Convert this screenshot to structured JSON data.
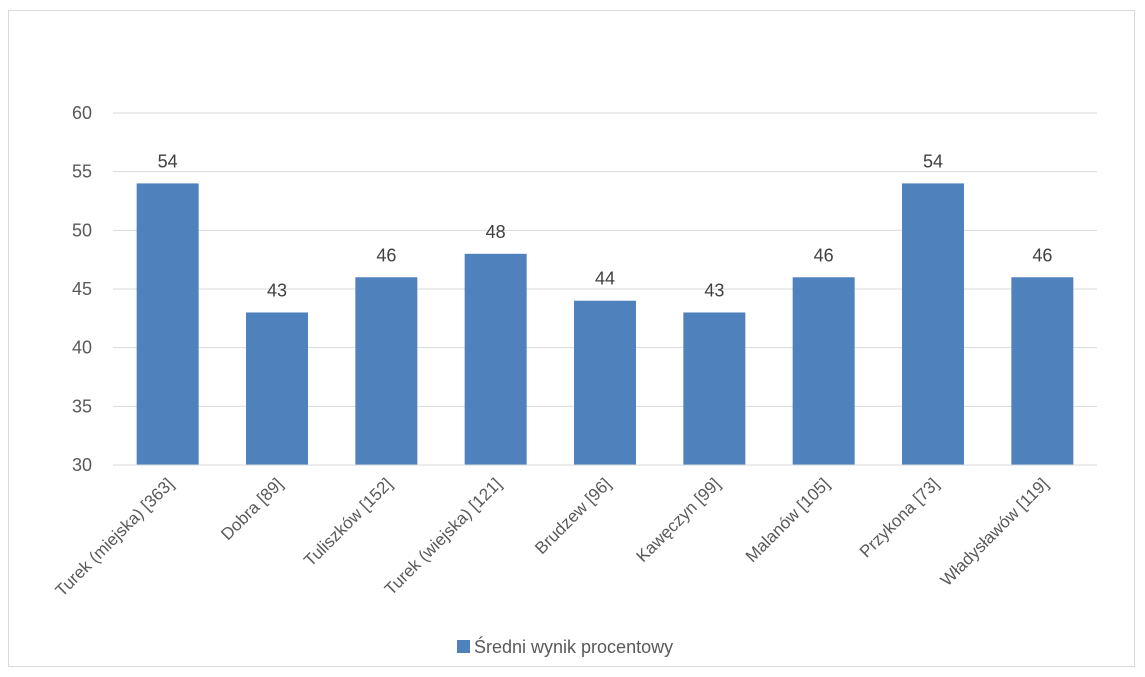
{
  "chart_data": {
    "type": "bar",
    "title": "",
    "xlabel": "",
    "ylabel": "",
    "categories": [
      "Turek (miejska) [363]",
      "Dobra [89]",
      "Tuliszków [152]",
      "Turek (wiejska) [121]",
      "Brudzew [96]",
      "Kawęczyn [99]",
      "Malanów [105]",
      "Przykona [73]",
      "Władysławów [119]"
    ],
    "series": [
      {
        "name": "Średni wynik procentowy",
        "values": [
          54,
          43,
          46,
          48,
          44,
          43,
          46,
          54,
          46
        ],
        "color": "#4f81bd"
      }
    ],
    "ylim": [
      30,
      60
    ],
    "yticks": [
      30,
      35,
      40,
      45,
      50,
      55,
      60
    ],
    "grid": true,
    "legend_position": "bottom",
    "gridline_color": "#d9d9d9",
    "axis_text_color": "#595959"
  }
}
